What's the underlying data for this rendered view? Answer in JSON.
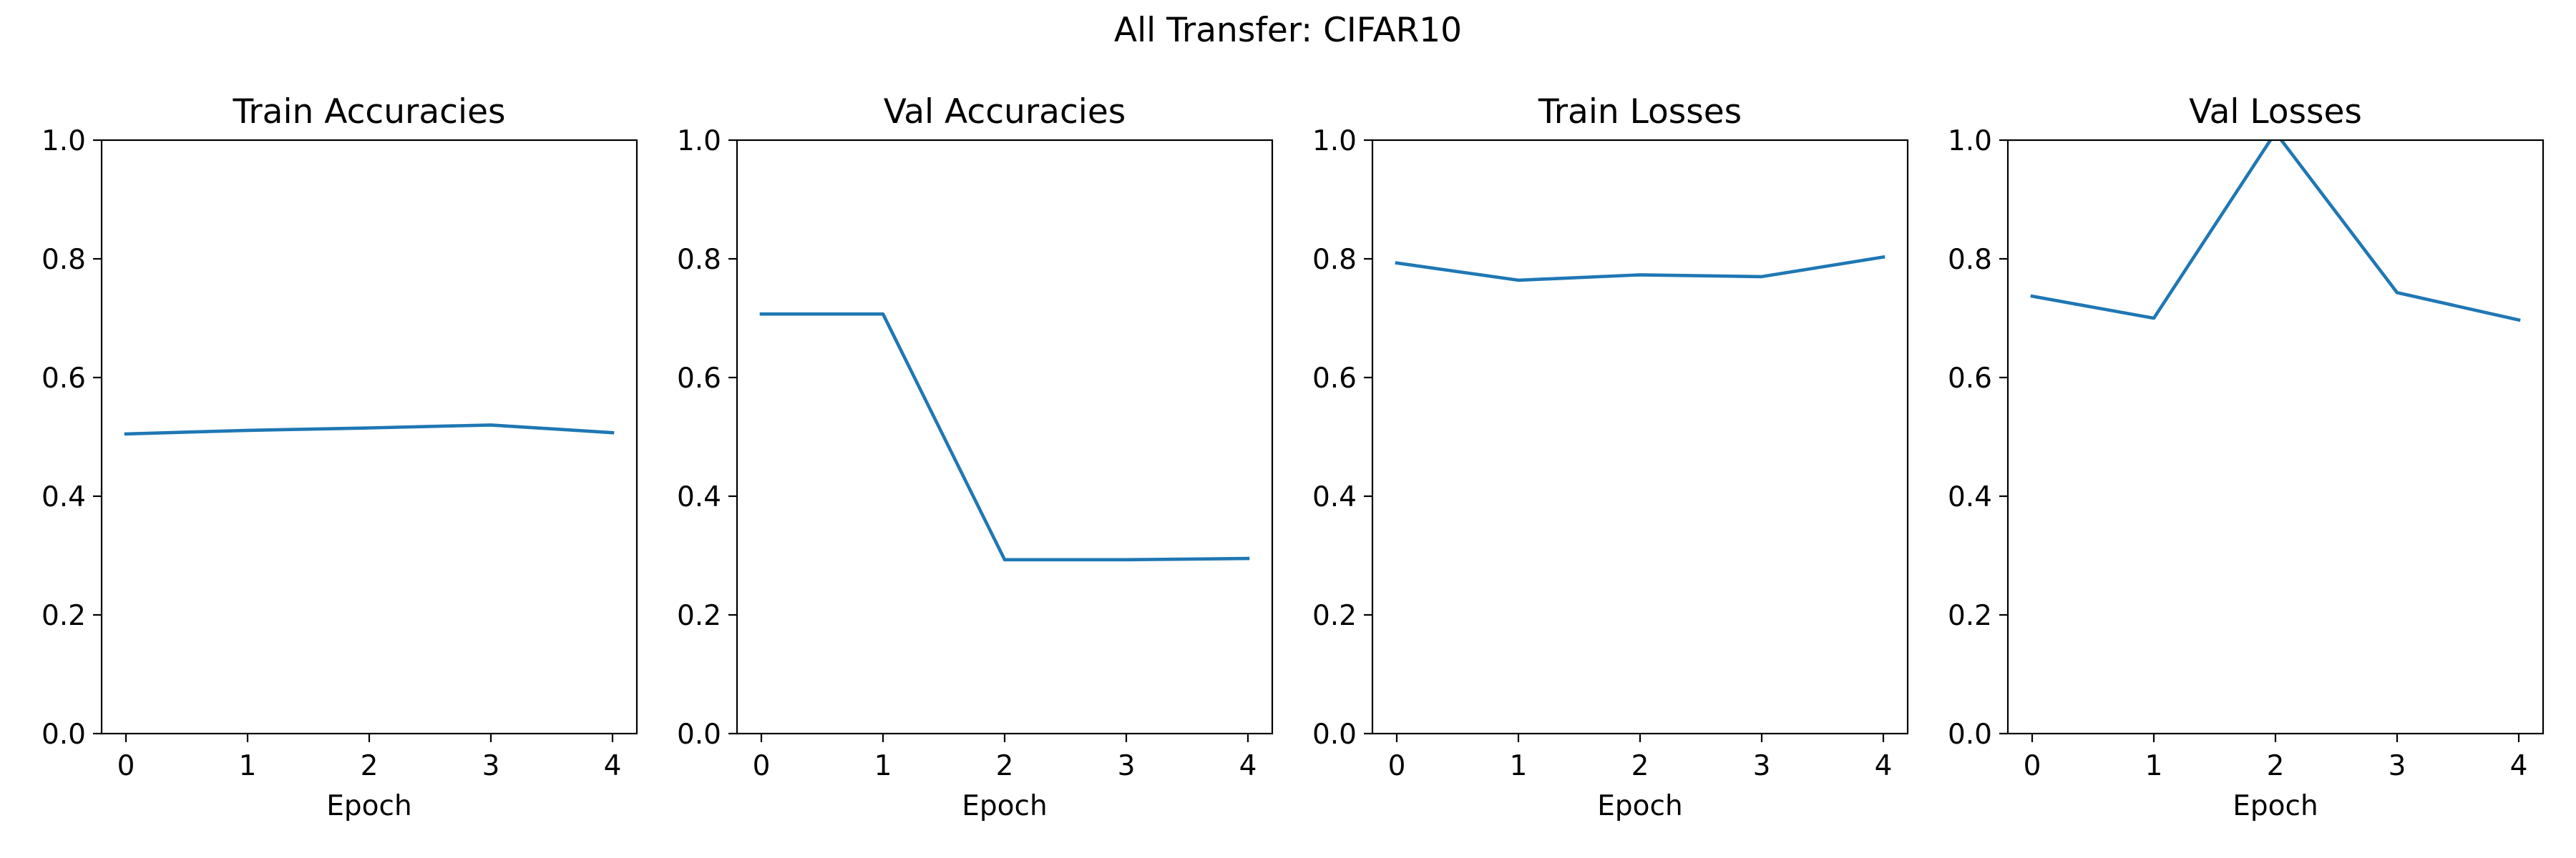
{
  "figure": {
    "title": "All Transfer: CIFAR10"
  },
  "colors": {
    "line": "#1f77b4",
    "background": "#ffffff",
    "axis": "#000000"
  },
  "chart_data": [
    {
      "type": "line",
      "title": "Train Accuracies",
      "xlabel": "Epoch",
      "ylabel": "",
      "x": [
        0,
        1,
        2,
        3,
        4
      ],
      "xticks": [
        "0",
        "1",
        "2",
        "3",
        "4"
      ],
      "ylim": [
        0,
        1
      ],
      "yticks": [
        "0.0",
        "0.2",
        "0.4",
        "0.6",
        "0.8",
        "1.0"
      ],
      "grid": false,
      "series": [
        {
          "values": [
            0.505,
            0.511,
            0.515,
            0.52,
            0.507
          ]
        }
      ]
    },
    {
      "type": "line",
      "title": "Val Accuracies",
      "xlabel": "Epoch",
      "ylabel": "",
      "x": [
        0,
        1,
        2,
        3,
        4
      ],
      "xticks": [
        "0",
        "1",
        "2",
        "3",
        "4"
      ],
      "ylim": [
        0,
        1
      ],
      "yticks": [
        "0.0",
        "0.2",
        "0.4",
        "0.6",
        "0.8",
        "1.0"
      ],
      "grid": false,
      "series": [
        {
          "values": [
            0.707,
            0.707,
            0.293,
            0.293,
            0.295
          ]
        }
      ]
    },
    {
      "type": "line",
      "title": "Train Losses",
      "xlabel": "Epoch",
      "ylabel": "",
      "x": [
        0,
        1,
        2,
        3,
        4
      ],
      "xticks": [
        "0",
        "1",
        "2",
        "3",
        "4"
      ],
      "ylim": [
        0,
        1
      ],
      "yticks": [
        "0.0",
        "0.2",
        "0.4",
        "0.6",
        "0.8",
        "1.0"
      ],
      "grid": false,
      "series": [
        {
          "values": [
            0.793,
            0.764,
            0.773,
            0.77,
            0.803
          ]
        }
      ]
    },
    {
      "type": "line",
      "title": "Val Losses",
      "xlabel": "Epoch",
      "ylabel": "",
      "x": [
        0,
        1,
        2,
        3,
        4
      ],
      "xticks": [
        "0",
        "1",
        "2",
        "3",
        "4"
      ],
      "ylim": [
        0,
        1
      ],
      "yticks": [
        "0.0",
        "0.2",
        "0.4",
        "0.6",
        "0.8",
        "1.0"
      ],
      "grid": false,
      "series": [
        {
          "values": [
            0.737,
            0.7,
            1.013,
            0.743,
            0.697
          ]
        }
      ]
    }
  ]
}
